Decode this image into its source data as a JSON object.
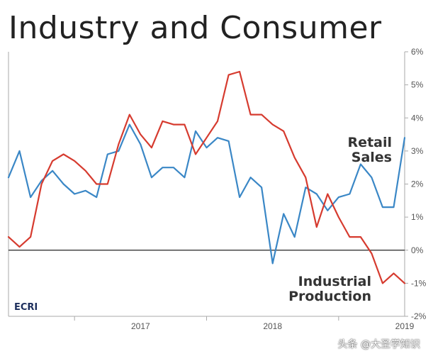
{
  "header": {
    "title": "Industry and Consumer"
  },
  "chart_data": {
    "type": "line",
    "title": "Industry and Consumer",
    "xlabel": "",
    "ylabel": "",
    "ylim": [
      -2,
      6
    ],
    "yticks": [
      -2,
      -1,
      0,
      1,
      2,
      3,
      4,
      5,
      6
    ],
    "ytick_labels": [
      "-2%",
      "-1%",
      "0%",
      "1%",
      "2%",
      "3%",
      "4%",
      "5%",
      "6%"
    ],
    "xlim": [
      "2016-07",
      "2019-07"
    ],
    "xtick_labels": [
      "2017",
      "2018",
      "2019"
    ],
    "grid": false,
    "zero_line": true,
    "colors": {
      "retail": "#3a87c6",
      "industrial": "#d63b2f",
      "axis": "#aaaaaa",
      "zero": "#222222"
    },
    "series": [
      {
        "key": "retail",
        "label_lines": [
          "Retail",
          "Sales"
        ],
        "x": [
          "2016-07",
          "2016-08",
          "2016-09",
          "2016-10",
          "2016-11",
          "2016-12",
          "2017-01",
          "2017-02",
          "2017-03",
          "2017-04",
          "2017-05",
          "2017-06",
          "2017-07",
          "2017-08",
          "2017-09",
          "2017-10",
          "2017-11",
          "2017-12",
          "2018-01",
          "2018-02",
          "2018-03",
          "2018-04",
          "2018-05",
          "2018-06",
          "2018-07",
          "2018-08",
          "2018-09",
          "2018-10",
          "2018-11",
          "2018-12",
          "2019-01",
          "2019-02",
          "2019-03",
          "2019-04",
          "2019-05",
          "2019-06",
          "2019-07"
        ],
        "values": [
          2.2,
          3.0,
          1.6,
          2.1,
          2.4,
          2.0,
          1.7,
          1.8,
          1.6,
          2.9,
          3.0,
          3.8,
          3.2,
          2.2,
          2.5,
          2.5,
          2.2,
          3.6,
          3.1,
          3.4,
          3.3,
          1.6,
          2.2,
          1.9,
          -0.4,
          1.1,
          0.4,
          1.9,
          1.7,
          1.2,
          1.6,
          1.7,
          2.6,
          2.2,
          1.3,
          1.3,
          3.4
        ]
      },
      {
        "key": "industrial",
        "label_lines": [
          "Industrial",
          "Production"
        ],
        "x": [
          "2016-07",
          "2016-08",
          "2016-09",
          "2016-10",
          "2016-11",
          "2016-12",
          "2017-01",
          "2017-02",
          "2017-03",
          "2017-04",
          "2017-05",
          "2017-06",
          "2017-07",
          "2017-08",
          "2017-09",
          "2017-10",
          "2017-11",
          "2017-12",
          "2018-01",
          "2018-02",
          "2018-03",
          "2018-04",
          "2018-05",
          "2018-06",
          "2018-07",
          "2018-08",
          "2018-09",
          "2018-10",
          "2018-11",
          "2018-12",
          "2019-01",
          "2019-02",
          "2019-03",
          "2019-04",
          "2019-05",
          "2019-06",
          "2019-07"
        ],
        "values": [
          0.4,
          0.1,
          0.4,
          2.0,
          2.7,
          2.9,
          2.7,
          2.4,
          2.0,
          2.0,
          3.2,
          4.1,
          3.5,
          3.1,
          3.9,
          3.8,
          3.8,
          2.9,
          3.4,
          3.9,
          5.3,
          5.4,
          4.1,
          4.1,
          3.8,
          3.6,
          2.8,
          2.2,
          0.7,
          1.7,
          1.0,
          0.4,
          0.4,
          -0.1,
          -1.0,
          -0.7,
          -1.0
        ]
      }
    ]
  },
  "source": {
    "logo": "ECRI"
  },
  "watermark": {
    "text": "头条 @大圣学知识"
  }
}
